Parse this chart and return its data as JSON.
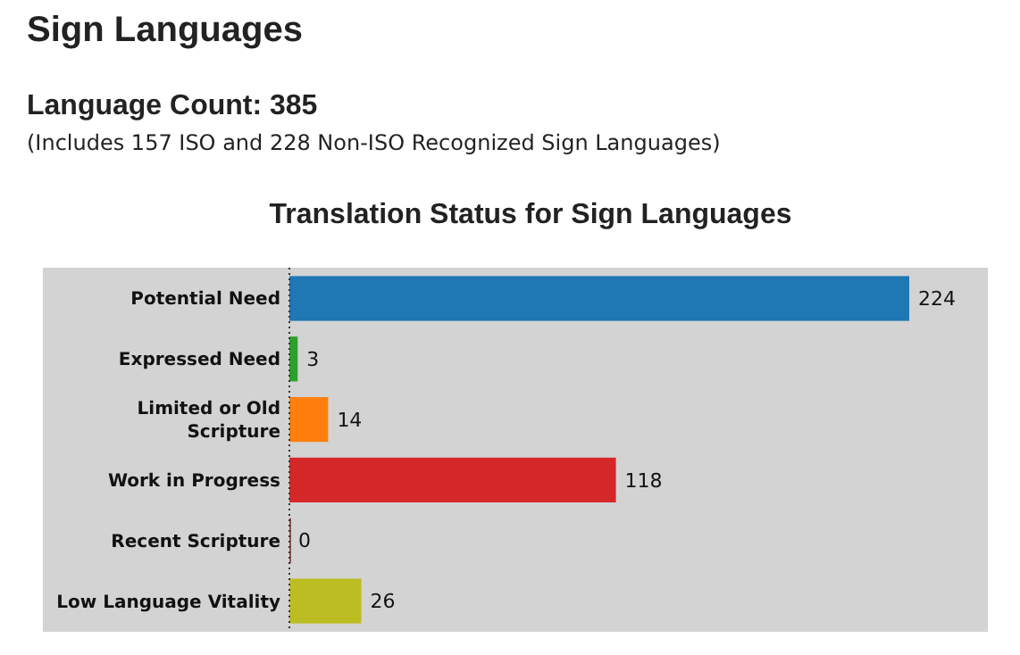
{
  "chart_data": {
    "type": "bar",
    "orientation": "horizontal",
    "title": "Translation Status for Sign Languages",
    "annotations": [
      "Sign Languages",
      "Language Count: 385",
      "(Includes 157 ISO and 228 Non-ISO Recognized Sign Languages)"
    ],
    "categories": [
      "Potential Need",
      "Expressed Need",
      "Limited or Old Scripture",
      "Work in Progress",
      "Recent Scripture",
      "Low Language Vitality"
    ],
    "values": [
      224,
      3,
      14,
      118,
      0,
      26
    ],
    "colors": [
      "#1f77b4",
      "#2ca02c",
      "#ff7f0e",
      "#d62728",
      "#8c564b",
      "#bcbd22"
    ],
    "data_labels": true
  }
}
